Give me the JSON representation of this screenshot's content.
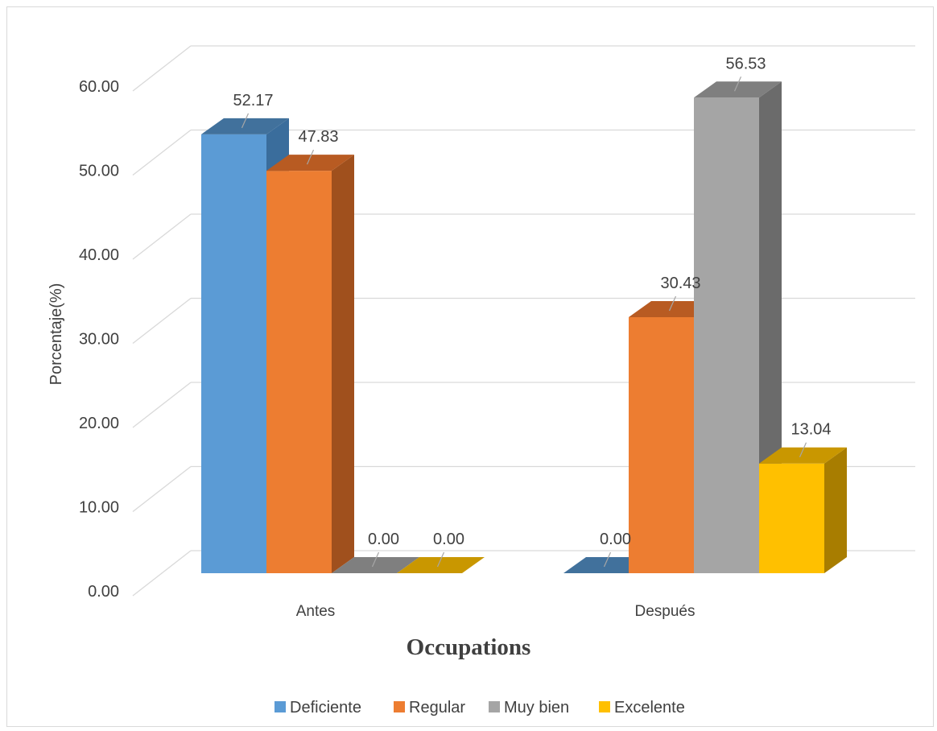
{
  "chart_data": {
    "type": "bar",
    "title": "Occupations",
    "ylabel": "Porcentaje(%)",
    "xlabel": "",
    "categories": [
      "Antes",
      "Después"
    ],
    "ylim": [
      0,
      60
    ],
    "yticks": [
      "0.00",
      "10.00",
      "20.00",
      "30.00",
      "40.00",
      "50.00",
      "60.00"
    ],
    "grid": true,
    "legend_position": "bottom",
    "three_d": true,
    "series": [
      {
        "name": "Deficiente",
        "values": [
          52.17,
          0.0
        ],
        "labels": [
          "52.17",
          "0.00"
        ],
        "color": "#5b9bd5",
        "side": "#3a6d9c",
        "top": "#41719c"
      },
      {
        "name": "Regular",
        "values": [
          47.83,
          30.43
        ],
        "labels": [
          "47.83",
          "30.43"
        ],
        "color": "#ed7d31",
        "side": "#a0501d",
        "top": "#b85b22"
      },
      {
        "name": "Muy bien",
        "values": [
          0.0,
          56.53
        ],
        "labels": [
          "0.00",
          "56.53"
        ],
        "color": "#a5a5a5",
        "side": "#6b6b6b",
        "top": "#7f7f7f"
      },
      {
        "name": "Excelente",
        "values": [
          0.0,
          13.04
        ],
        "labels": [
          "0.00",
          "13.04"
        ],
        "color": "#ffc000",
        "side": "#a87d00",
        "top": "#c99700"
      }
    ]
  }
}
